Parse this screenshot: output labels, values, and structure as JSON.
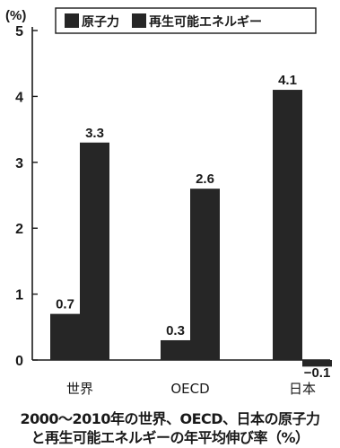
{
  "chart_data": {
    "type": "bar",
    "y_unit_label": "(%)",
    "categories": [
      "世界",
      "OECD",
      "日本"
    ],
    "series": [
      {
        "name": "原子力",
        "values": [
          0.7,
          0.3,
          4.1
        ],
        "value_labels": [
          "0.7",
          "0.3",
          "4.1"
        ],
        "color": "#262626"
      },
      {
        "name": "再生可能エネルギー",
        "values": [
          3.3,
          2.6,
          -0.1
        ],
        "value_labels": [
          "3.3",
          "2.6",
          "−0.1"
        ],
        "color": "#262626"
      }
    ],
    "ylim": [
      0,
      5
    ],
    "yticks": [
      "0",
      "1",
      "2",
      "3",
      "4",
      "5"
    ],
    "legend_position": "top",
    "grid": false
  },
  "caption": {
    "line1": "2000〜2010年の世界、OECD、日本の原子力",
    "line2": "と再生可能エネルギーの年平均伸び率（%）"
  }
}
